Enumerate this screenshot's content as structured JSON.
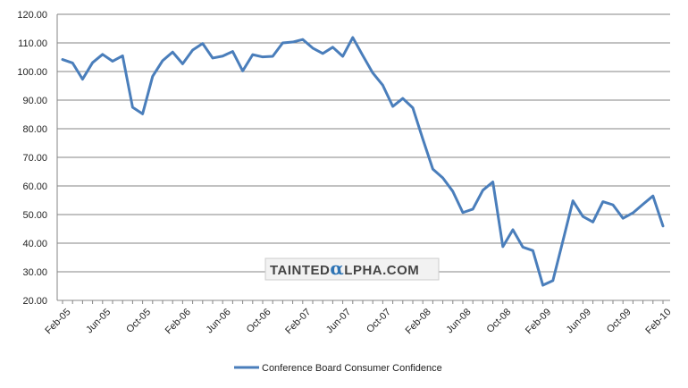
{
  "chart_data": {
    "type": "line",
    "ylim": [
      20,
      120
    ],
    "y_ticks": [
      20,
      30,
      40,
      50,
      60,
      70,
      80,
      90,
      100,
      110,
      120
    ],
    "y_tick_labels": [
      "20.00",
      "30.00",
      "40.00",
      "50.00",
      "60.00",
      "70.00",
      "80.00",
      "90.00",
      "100.00",
      "110.00",
      "120.00"
    ],
    "x_tick_labels": [
      "Feb-05",
      "Jun-05",
      "Oct-05",
      "Feb-06",
      "Jun-06",
      "Oct-06",
      "Feb-07",
      "Jun-07",
      "Oct-07",
      "Feb-08",
      "Jun-08",
      "Oct-08",
      "Feb-09",
      "Jun-09",
      "Oct-09",
      "Feb-10"
    ],
    "grid": "horizontal",
    "legend_position": "bottom",
    "series": [
      {
        "name": "Conference Board Consumer Confidence",
        "color": "#4a7ebb",
        "x": [
          "Feb-05",
          "Mar-05",
          "Apr-05",
          "May-05",
          "Jun-05",
          "Jul-05",
          "Aug-05",
          "Sep-05",
          "Oct-05",
          "Nov-05",
          "Dec-05",
          "Jan-06",
          "Feb-06",
          "Mar-06",
          "Apr-06",
          "May-06",
          "Jun-06",
          "Jul-06",
          "Aug-06",
          "Sep-06",
          "Oct-06",
          "Nov-06",
          "Dec-06",
          "Jan-07",
          "Feb-07",
          "Mar-07",
          "Apr-07",
          "May-07",
          "Jun-07",
          "Jul-07",
          "Aug-07",
          "Sep-07",
          "Oct-07",
          "Nov-07",
          "Dec-07",
          "Jan-08",
          "Feb-08",
          "Mar-08",
          "Apr-08",
          "May-08",
          "Jun-08",
          "Jul-08",
          "Aug-08",
          "Sep-08",
          "Oct-08",
          "Nov-08",
          "Dec-08",
          "Jan-09",
          "Feb-09",
          "Mar-09",
          "Apr-09",
          "May-09",
          "Jun-09",
          "Jul-09",
          "Aug-09",
          "Sep-09",
          "Oct-09",
          "Nov-09",
          "Dec-09",
          "Jan-10",
          "Feb-10"
        ],
        "values": [
          104.2,
          103.0,
          97.3,
          103.1,
          106.0,
          103.6,
          105.5,
          87.5,
          85.2,
          98.3,
          103.8,
          106.8,
          102.7,
          107.5,
          109.8,
          104.7,
          105.4,
          107.0,
          100.2,
          105.9,
          105.1,
          105.3,
          110.0,
          110.3,
          111.2,
          108.2,
          106.3,
          108.5,
          105.3,
          111.9,
          105.6,
          99.5,
          95.2,
          87.8,
          90.6,
          87.3,
          76.4,
          65.9,
          62.8,
          58.1,
          50.7,
          51.9,
          58.5,
          61.4,
          38.8,
          44.7,
          38.6,
          37.4,
          25.3,
          26.9,
          40.8,
          54.8,
          49.3,
          47.4,
          54.5,
          53.4,
          48.7,
          50.6,
          53.6,
          56.5,
          46.0
        ]
      }
    ]
  },
  "watermark": {
    "text_before": "TAINTED",
    "alpha_glyph": "α",
    "text_after": "LPHA.COM"
  }
}
